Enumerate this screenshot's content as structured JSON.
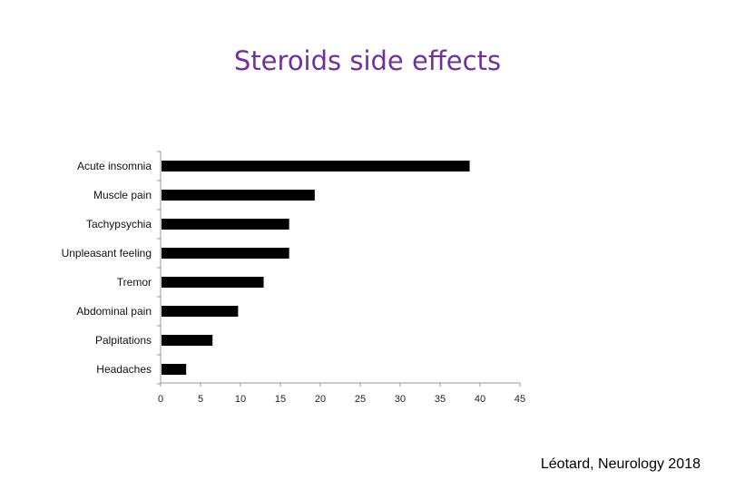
{
  "slide": {
    "title": "Steroids side effects",
    "citation": "Léotard, Neurology 2018"
  },
  "chart_data": {
    "type": "bar",
    "orientation": "horizontal",
    "categories": [
      "Acute insomnia",
      "Muscle pain",
      "Tachypsychia",
      "Unpleasant feeling",
      "Tremor",
      "Abdominal pain",
      "Palpitations",
      "Headaches"
    ],
    "values": [
      38.7,
      19.3,
      16.1,
      16.1,
      12.9,
      9.7,
      6.5,
      3.2
    ],
    "xlim": [
      0,
      45
    ],
    "xticks": [
      0,
      5,
      10,
      15,
      20,
      25,
      30,
      35,
      40,
      45
    ],
    "grid": false,
    "bar_color": "#000000"
  },
  "colors": {
    "title": "#7030a0",
    "axis": "#999999"
  }
}
